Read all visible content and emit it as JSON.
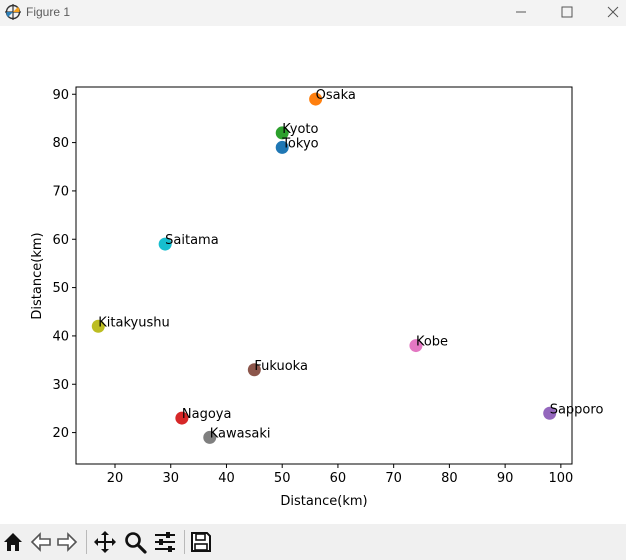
{
  "window": {
    "title": "Figure 1",
    "icon": "matplotlib-figure-icon"
  },
  "controls": {
    "minimize_icon": "minimize-icon",
    "maximize_icon": "maximize-icon",
    "close_icon": "close-icon"
  },
  "toolbar": {
    "buttons": [
      "home-icon",
      "back-icon",
      "forward-icon",
      "pan-icon",
      "zoom-icon",
      "configure-subplots-icon",
      "save-icon"
    ]
  },
  "chart_data": {
    "type": "scatter",
    "title": "",
    "xlabel": "Distance(km)",
    "ylabel": "Distance(km)",
    "xlim": [
      13,
      102
    ],
    "ylim": [
      13.5,
      91.5
    ],
    "xticks": [
      20,
      30,
      40,
      50,
      60,
      70,
      80,
      90,
      100
    ],
    "yticks": [
      20,
      30,
      40,
      50,
      60,
      70,
      80,
      90
    ],
    "grid": false,
    "points": [
      {
        "label": "Tokyo",
        "x": 50,
        "y": 79,
        "color": "#1f77b4"
      },
      {
        "label": "Osaka",
        "x": 56,
        "y": 89,
        "color": "#ff7f0e"
      },
      {
        "label": "Kyoto",
        "x": 50,
        "y": 82,
        "color": "#2ca02c"
      },
      {
        "label": "Nagoya",
        "x": 32,
        "y": 23,
        "color": "#d62728"
      },
      {
        "label": "Sapporo",
        "x": 98,
        "y": 24,
        "color": "#9467bd"
      },
      {
        "label": "Fukuoka",
        "x": 45,
        "y": 33,
        "color": "#8c564b"
      },
      {
        "label": "Kobe",
        "x": 74,
        "y": 38,
        "color": "#e377c2"
      },
      {
        "label": "Kawasaki",
        "x": 37,
        "y": 19,
        "color": "#7f7f7f"
      },
      {
        "label": "Kitakyushu",
        "x": 17,
        "y": 42,
        "color": "#bcbd22"
      },
      {
        "label": "Saitama",
        "x": 29,
        "y": 59,
        "color": "#17becf"
      }
    ]
  }
}
